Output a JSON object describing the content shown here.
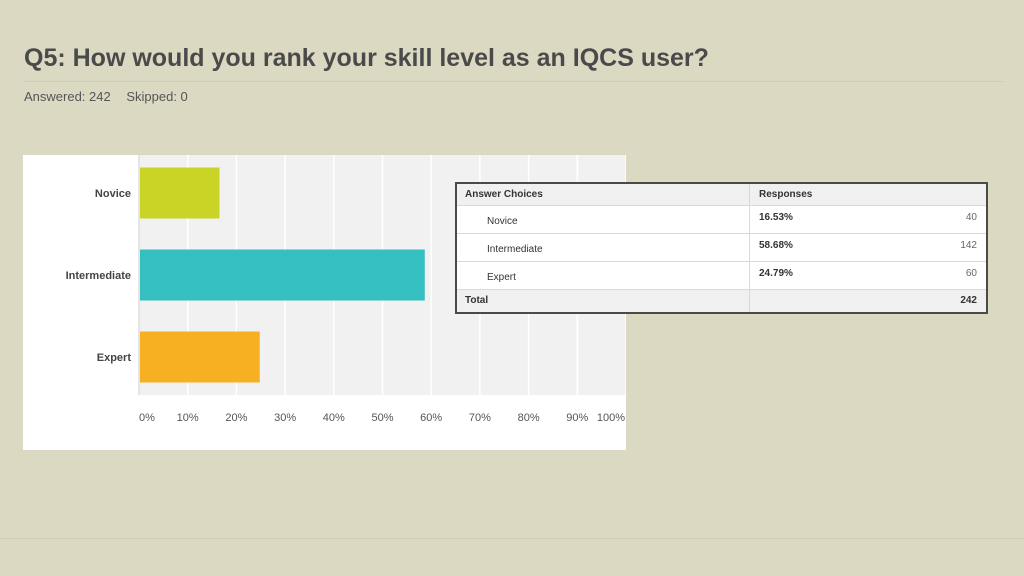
{
  "page": {
    "title": "Q5: How would you rank your skill level as an IQCS user?",
    "answered": "Answered: 242",
    "skipped": "Skipped: 0"
  },
  "chart_data": {
    "type": "bar",
    "orientation": "horizontal",
    "categories": [
      "Novice",
      "Intermediate",
      "Expert"
    ],
    "values": [
      16.53,
      58.68,
      24.79
    ],
    "colors": [
      "#c9d427",
      "#35bfc0",
      "#f6b021"
    ],
    "xlim": [
      0,
      100
    ],
    "xticks": [
      "0%",
      "10%",
      "20%",
      "30%",
      "40%",
      "50%",
      "60%",
      "70%",
      "80%",
      "90%",
      "100%"
    ],
    "grid": true
  },
  "table": {
    "headers": [
      "Answer Choices",
      "Responses"
    ],
    "rows": [
      {
        "choice": "Novice",
        "percent": "16.53%",
        "count": "40"
      },
      {
        "choice": "Intermediate",
        "percent": "58.68%",
        "count": "142"
      },
      {
        "choice": "Expert",
        "percent": "24.79%",
        "count": "60"
      }
    ],
    "total_label": "Total",
    "total_count": "242"
  }
}
